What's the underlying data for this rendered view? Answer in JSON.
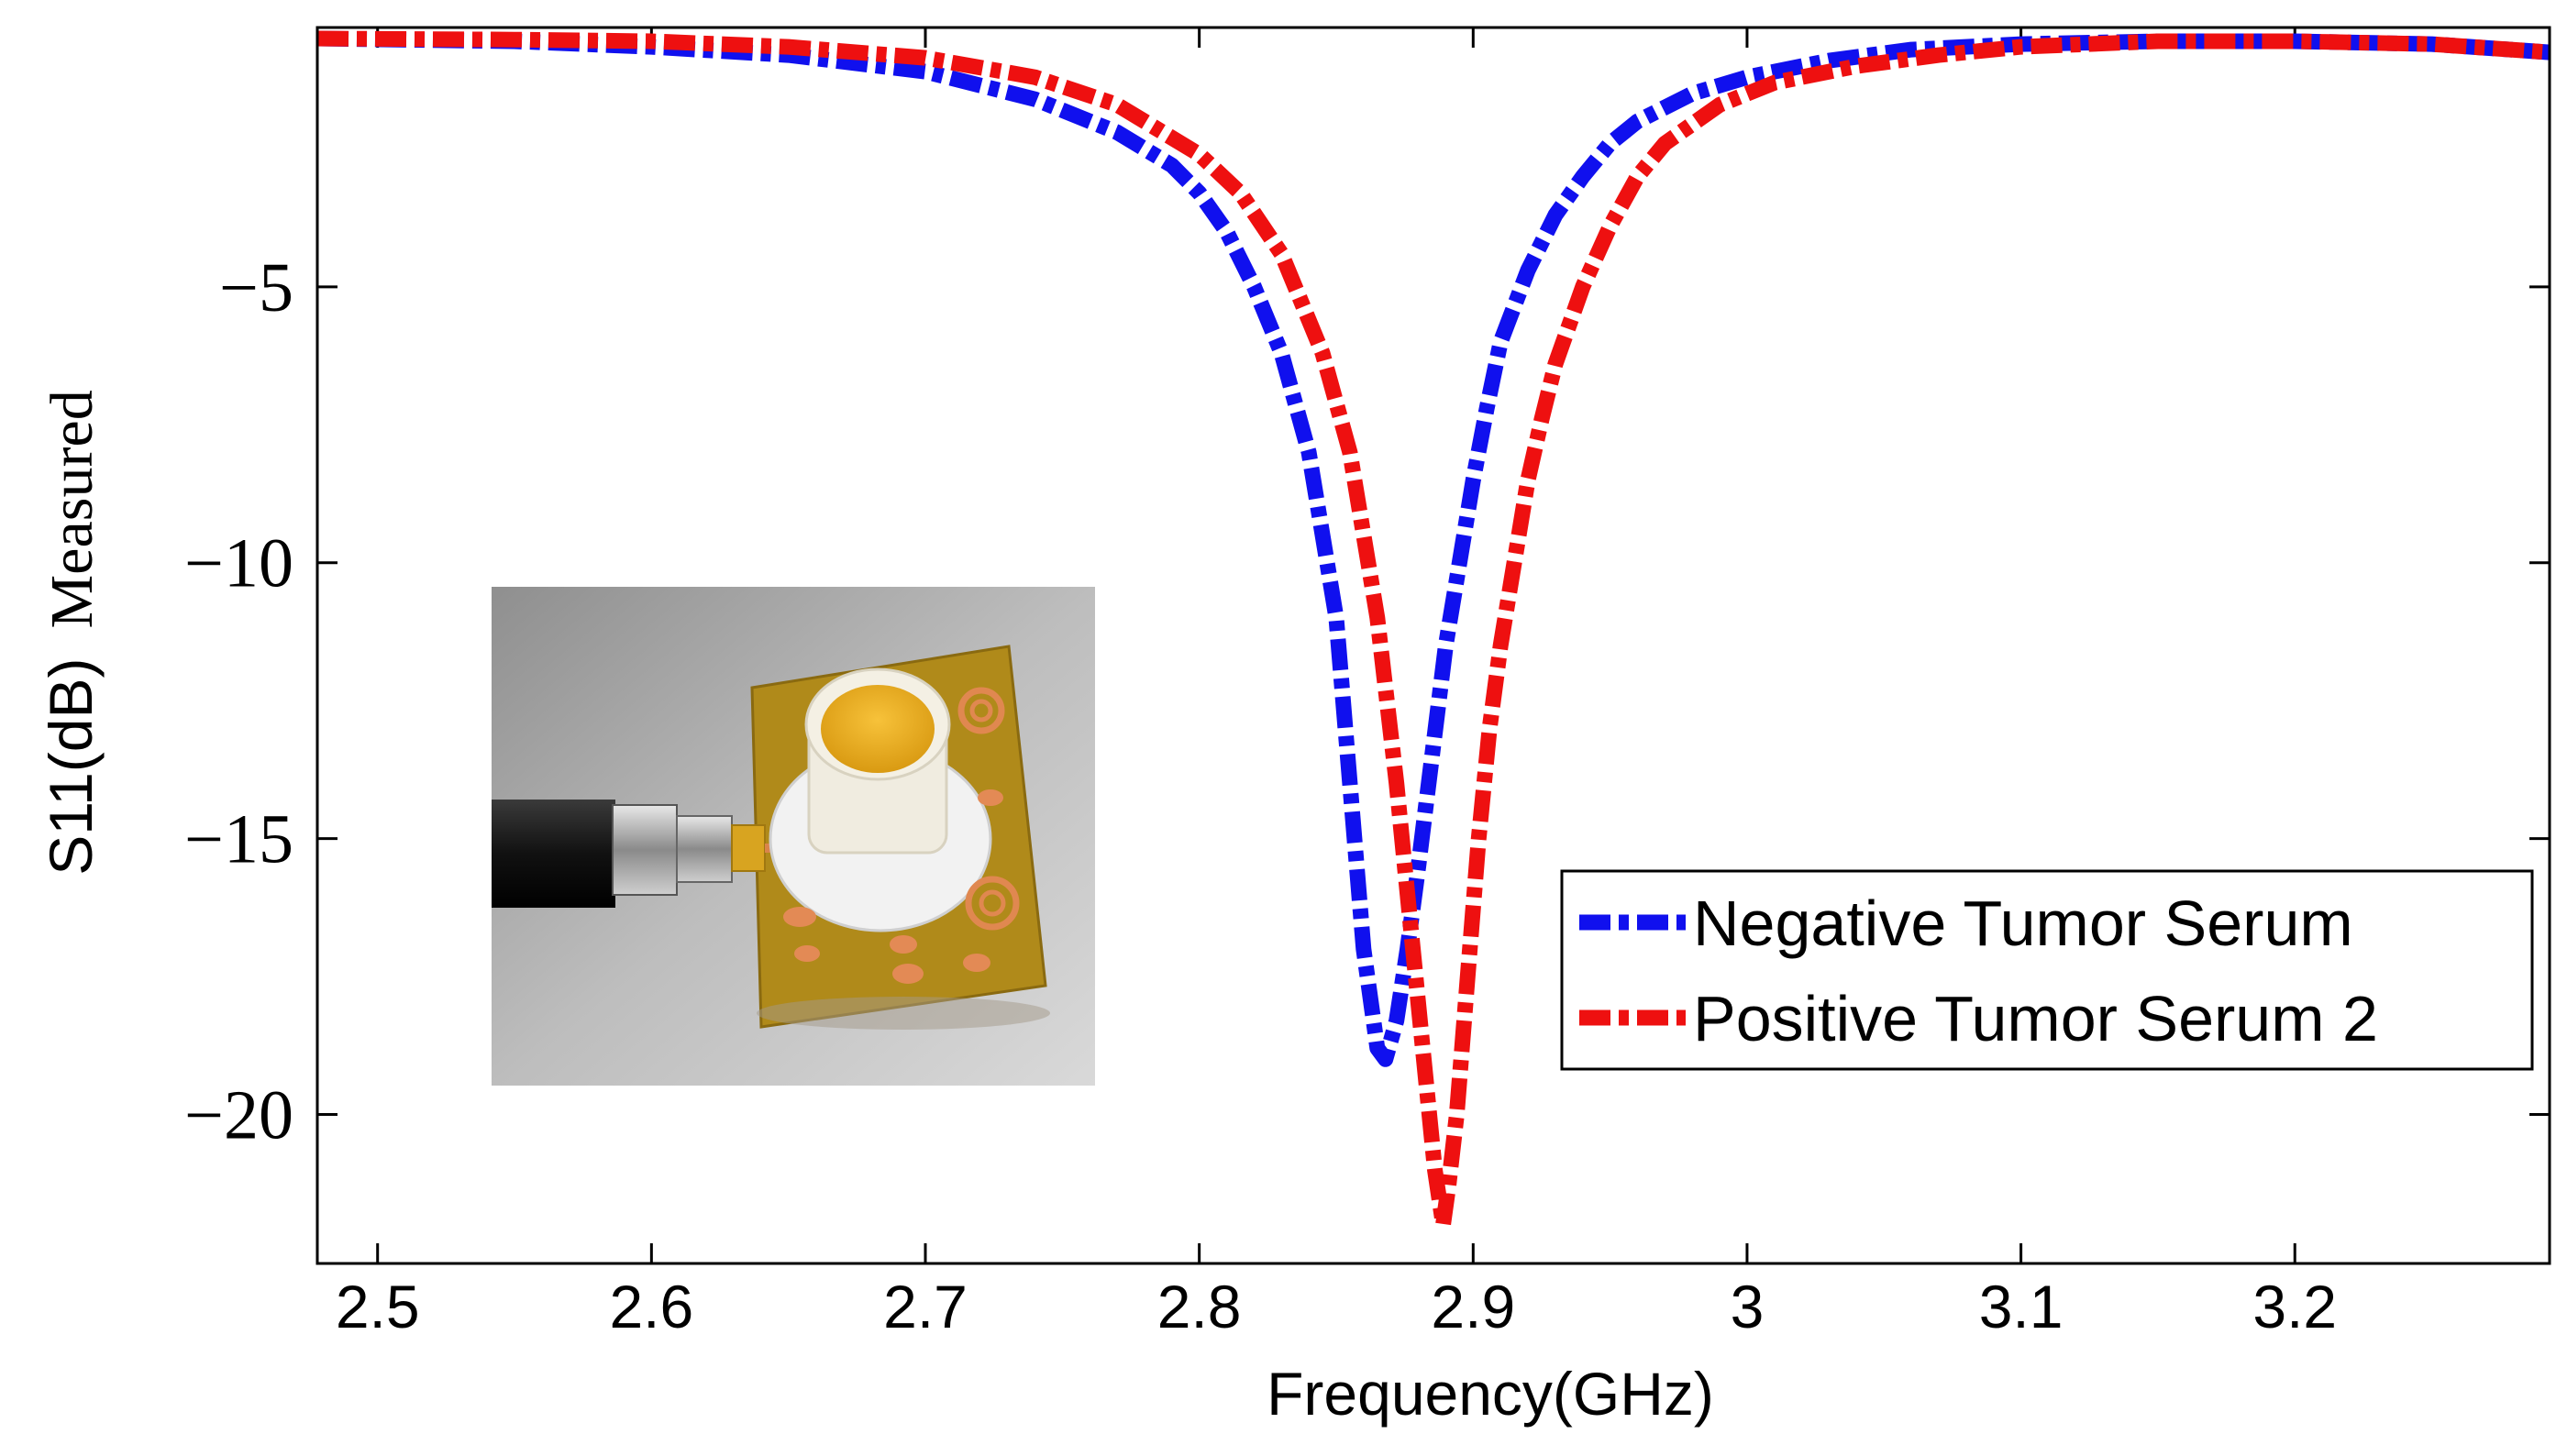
{
  "chart_data": {
    "type": "line",
    "title": "",
    "xlabel": "Frequency(GHz)",
    "ylabel": "S11(dB)",
    "ylabel_suffix": "Measured",
    "xlim": [
      2.478,
      3.293
    ],
    "ylim": [
      -22.7,
      -0.3
    ],
    "x_ticks": [
      2.5,
      2.6,
      2.7,
      2.8,
      2.9,
      3.0,
      3.1,
      3.2
    ],
    "x_tick_labels": [
      "2.5",
      "2.6",
      "2.7",
      "2.8",
      "2.9",
      "3",
      "3.1",
      "3.2"
    ],
    "y_ticks": [
      -5,
      -10,
      -15,
      -20
    ],
    "y_tick_labels": [
      "−5",
      "−10",
      "−15",
      "−20"
    ],
    "grid": false,
    "legend_position": "bottom-right",
    "inset": "photo of sensor device with coaxial connector",
    "series": [
      {
        "name": "Negative Tumor Serum",
        "color": "#1010ee",
        "x": [
          2.478,
          2.55,
          2.6,
          2.65,
          2.7,
          2.74,
          2.77,
          2.79,
          2.8,
          2.81,
          2.82,
          2.83,
          2.84,
          2.85,
          2.855,
          2.86,
          2.865,
          2.868,
          2.872,
          2.876,
          2.88,
          2.885,
          2.89,
          2.895,
          2.9,
          2.905,
          2.91,
          2.92,
          2.93,
          2.94,
          2.95,
          2.96,
          2.98,
          3.0,
          3.03,
          3.06,
          3.1,
          3.15,
          3.2,
          3.25,
          3.293
        ],
        "y": [
          -0.5,
          -0.55,
          -0.65,
          -0.8,
          -1.1,
          -1.6,
          -2.2,
          -2.8,
          -3.3,
          -4.0,
          -5.0,
          -6.2,
          -8.0,
          -11.0,
          -14.0,
          -17.0,
          -18.8,
          -19.0,
          -18.3,
          -17.0,
          -15.5,
          -13.5,
          -11.5,
          -10.0,
          -8.5,
          -7.2,
          -6.0,
          -4.7,
          -3.7,
          -3.0,
          -2.4,
          -2.0,
          -1.5,
          -1.2,
          -0.9,
          -0.7,
          -0.6,
          -0.55,
          -0.55,
          -0.6,
          -0.75
        ]
      },
      {
        "name": "Positive Tumor Serum 2",
        "color": "#ee1010",
        "x": [
          2.478,
          2.55,
          2.6,
          2.65,
          2.7,
          2.74,
          2.77,
          2.8,
          2.815,
          2.83,
          2.845,
          2.855,
          2.865,
          2.872,
          2.877,
          2.882,
          2.886,
          2.889,
          2.891,
          2.894,
          2.898,
          2.902,
          2.906,
          2.91,
          2.915,
          2.92,
          2.925,
          2.93,
          2.94,
          2.95,
          2.96,
          2.97,
          2.99,
          3.01,
          3.04,
          3.07,
          3.1,
          3.15,
          3.2,
          3.25,
          3.293
        ],
        "y": [
          -0.5,
          -0.52,
          -0.55,
          -0.65,
          -0.85,
          -1.2,
          -1.7,
          -2.6,
          -3.3,
          -4.4,
          -6.2,
          -8.0,
          -11.0,
          -14.0,
          -16.5,
          -19.0,
          -21.0,
          -22.0,
          -21.3,
          -20.0,
          -17.5,
          -15.0,
          -13.0,
          -11.5,
          -10.0,
          -8.5,
          -7.4,
          -6.4,
          -5.0,
          -3.9,
          -3.0,
          -2.4,
          -1.7,
          -1.3,
          -1.0,
          -0.8,
          -0.65,
          -0.55,
          -0.55,
          -0.6,
          -0.75
        ]
      }
    ]
  }
}
